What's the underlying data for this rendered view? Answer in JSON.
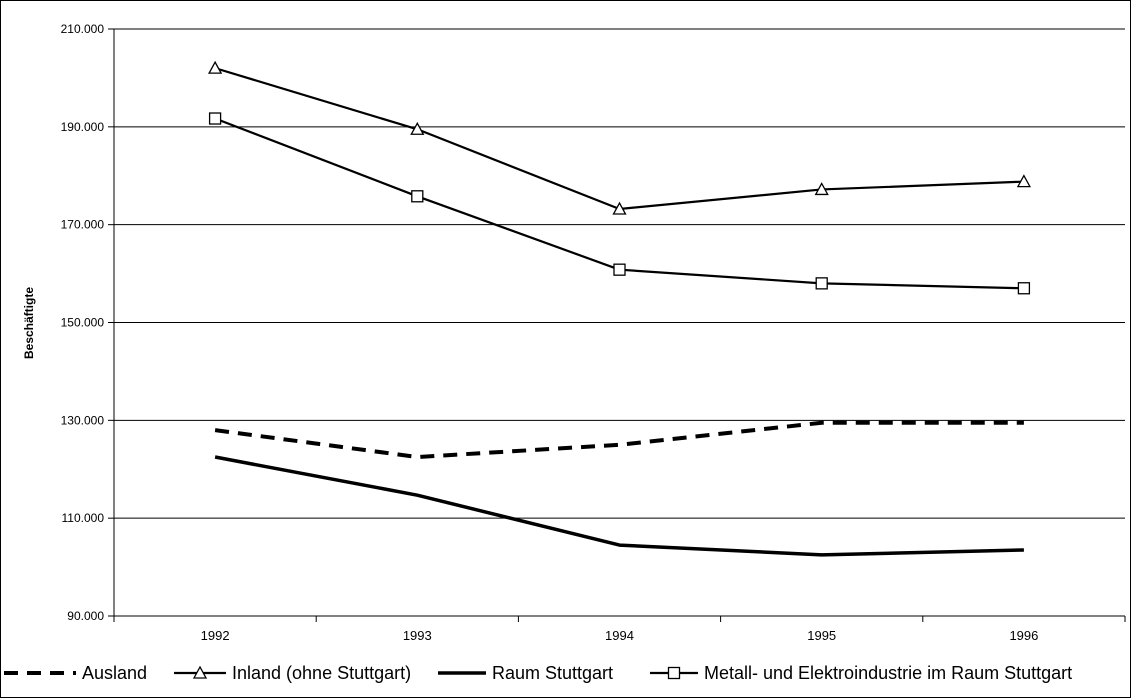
{
  "chart_data": {
    "type": "line",
    "x": [
      "1992",
      "1993",
      "1994",
      "1995",
      "1996"
    ],
    "ylabel": "Beschäftigte",
    "ylim": [
      90000,
      210000
    ],
    "yticks": [
      "210.000",
      "190.000",
      "170.000",
      "150.000",
      "130.000",
      "110.000",
      "90.000"
    ],
    "grid": true,
    "legend_position": "bottom",
    "series": [
      {
        "name": "Ausland",
        "style": "dashed",
        "marker": "none",
        "values": [
          128000,
          122500,
          125000,
          129500,
          129500
        ]
      },
      {
        "name": "Inland (ohne Stuttgart)",
        "style": "solid",
        "marker": "triangle",
        "values": [
          202000,
          189500,
          173200,
          177200,
          178800
        ]
      },
      {
        "name": "Raum Stuttgart",
        "style": "solid-thick",
        "marker": "none",
        "values": [
          122500,
          114700,
          104500,
          102500,
          103500
        ]
      },
      {
        "name": "Metall- und Elektroindustrie im Raum  Stuttgart",
        "style": "solid",
        "marker": "square",
        "values": [
          191700,
          175800,
          160800,
          158000,
          157000
        ]
      }
    ]
  }
}
